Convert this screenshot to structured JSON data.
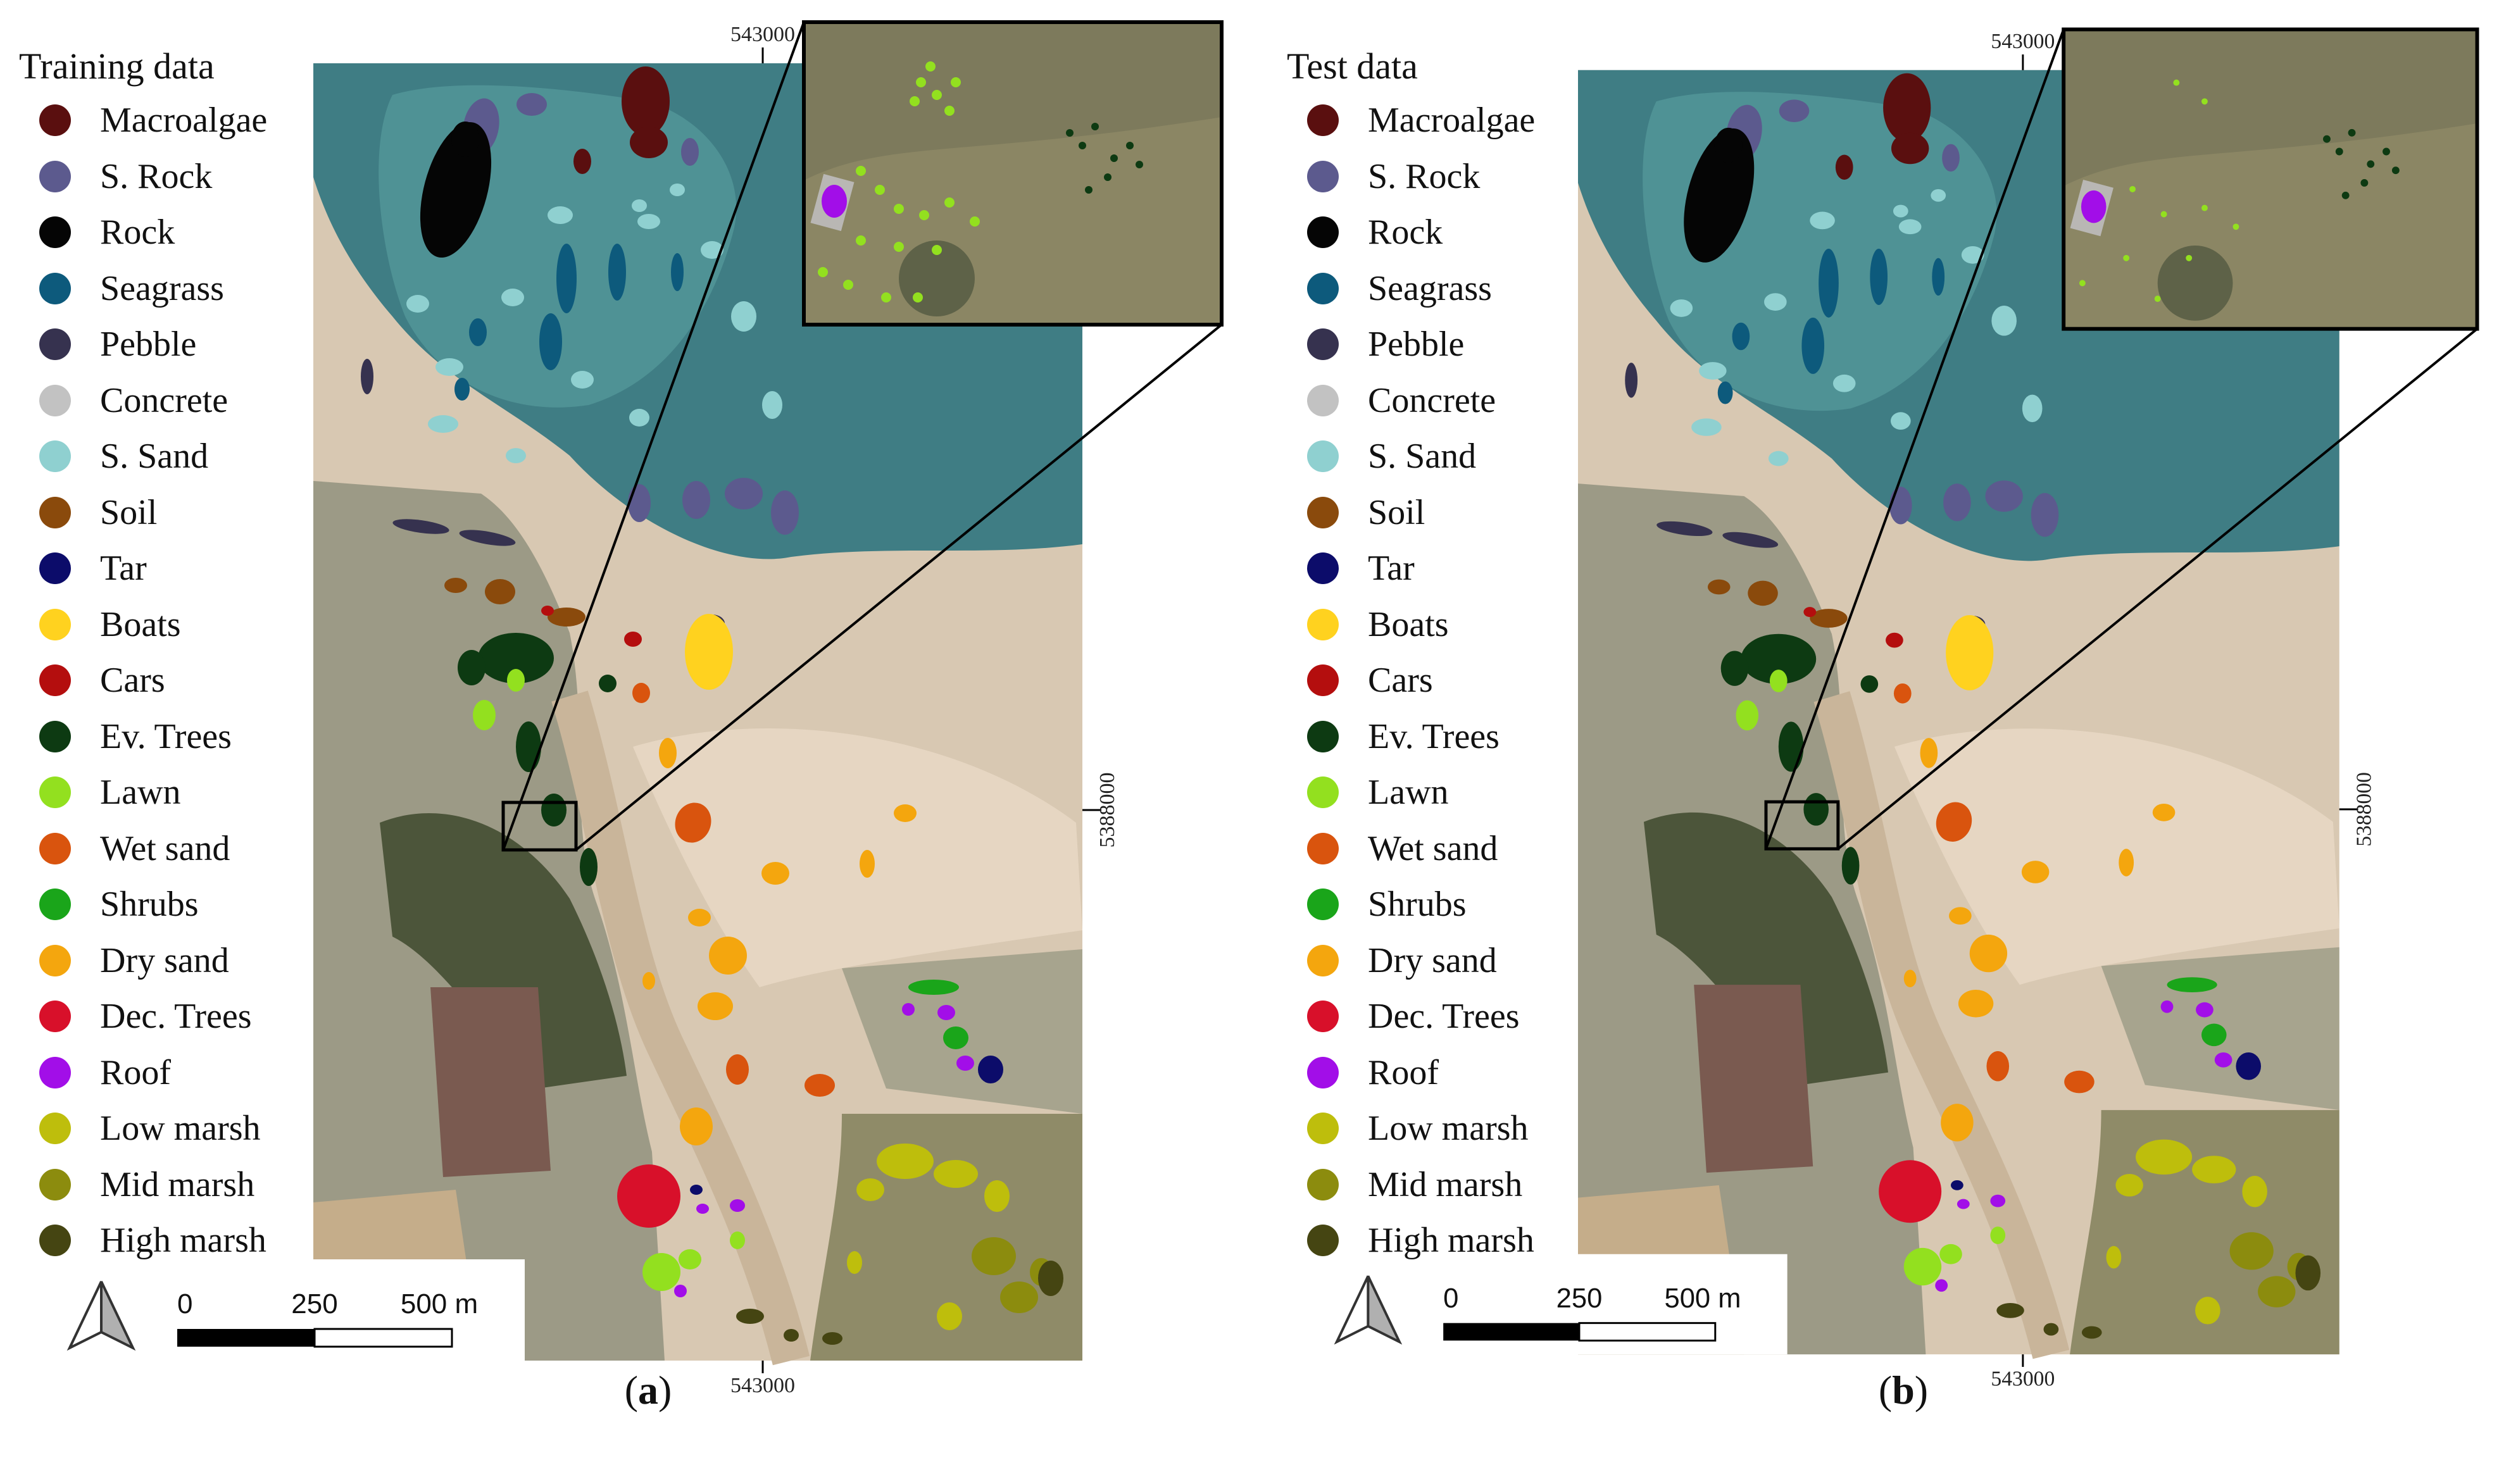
{
  "panels": [
    {
      "id": "a",
      "legend_title": "Training data",
      "caption_letter": "a",
      "coordinates": {
        "top_easting": "543000",
        "bottom_easting": "543000",
        "right_northing": "5388000"
      },
      "scale_bar": {
        "labels": [
          "0",
          "250",
          "500 m"
        ]
      }
    },
    {
      "id": "b",
      "legend_title": "Test data",
      "caption_letter": "b",
      "coordinates": {
        "top_easting": "543000",
        "bottom_easting": "543000",
        "right_northing": "5388000"
      },
      "scale_bar": {
        "labels": [
          "0",
          "250",
          "500 m"
        ]
      }
    }
  ],
  "classes": [
    {
      "name": "Macroalgae",
      "color": "#5a0f0f"
    },
    {
      "name": "S. Rock",
      "color": "#5c5a8e"
    },
    {
      "name": "Rock",
      "color": "#050505"
    },
    {
      "name": "Seagrass",
      "color": "#0d5a7c"
    },
    {
      "name": "Pebble",
      "color": "#36324f"
    },
    {
      "name": "Concrete",
      "color": "#c2c2c2"
    },
    {
      "name": "S. Sand",
      "color": "#8fd0d0"
    },
    {
      "name": "Soil",
      "color": "#8a4a0c"
    },
    {
      "name": "Tar",
      "color": "#0c0c6a"
    },
    {
      "name": "Boats",
      "color": "#ffd21f"
    },
    {
      "name": "Cars",
      "color": "#b40e0e"
    },
    {
      "name": "Ev. Trees",
      "color": "#0d3a12"
    },
    {
      "name": "Lawn",
      "color": "#93e01f"
    },
    {
      "name": "Wet sand",
      "color": "#d9540e"
    },
    {
      "name": "Shrubs",
      "color": "#1aa51a"
    },
    {
      "name": "Dry sand",
      "color": "#f4a60e"
    },
    {
      "name": "Dec. Trees",
      "color": "#d8102a"
    },
    {
      "name": "Roof",
      "color": "#a20ee8"
    },
    {
      "name": "Low marsh",
      "color": "#bebe0c"
    },
    {
      "name": "Mid marsh",
      "color": "#8c8c0e"
    },
    {
      "name": "High marsh",
      "color": "#454512"
    }
  ]
}
